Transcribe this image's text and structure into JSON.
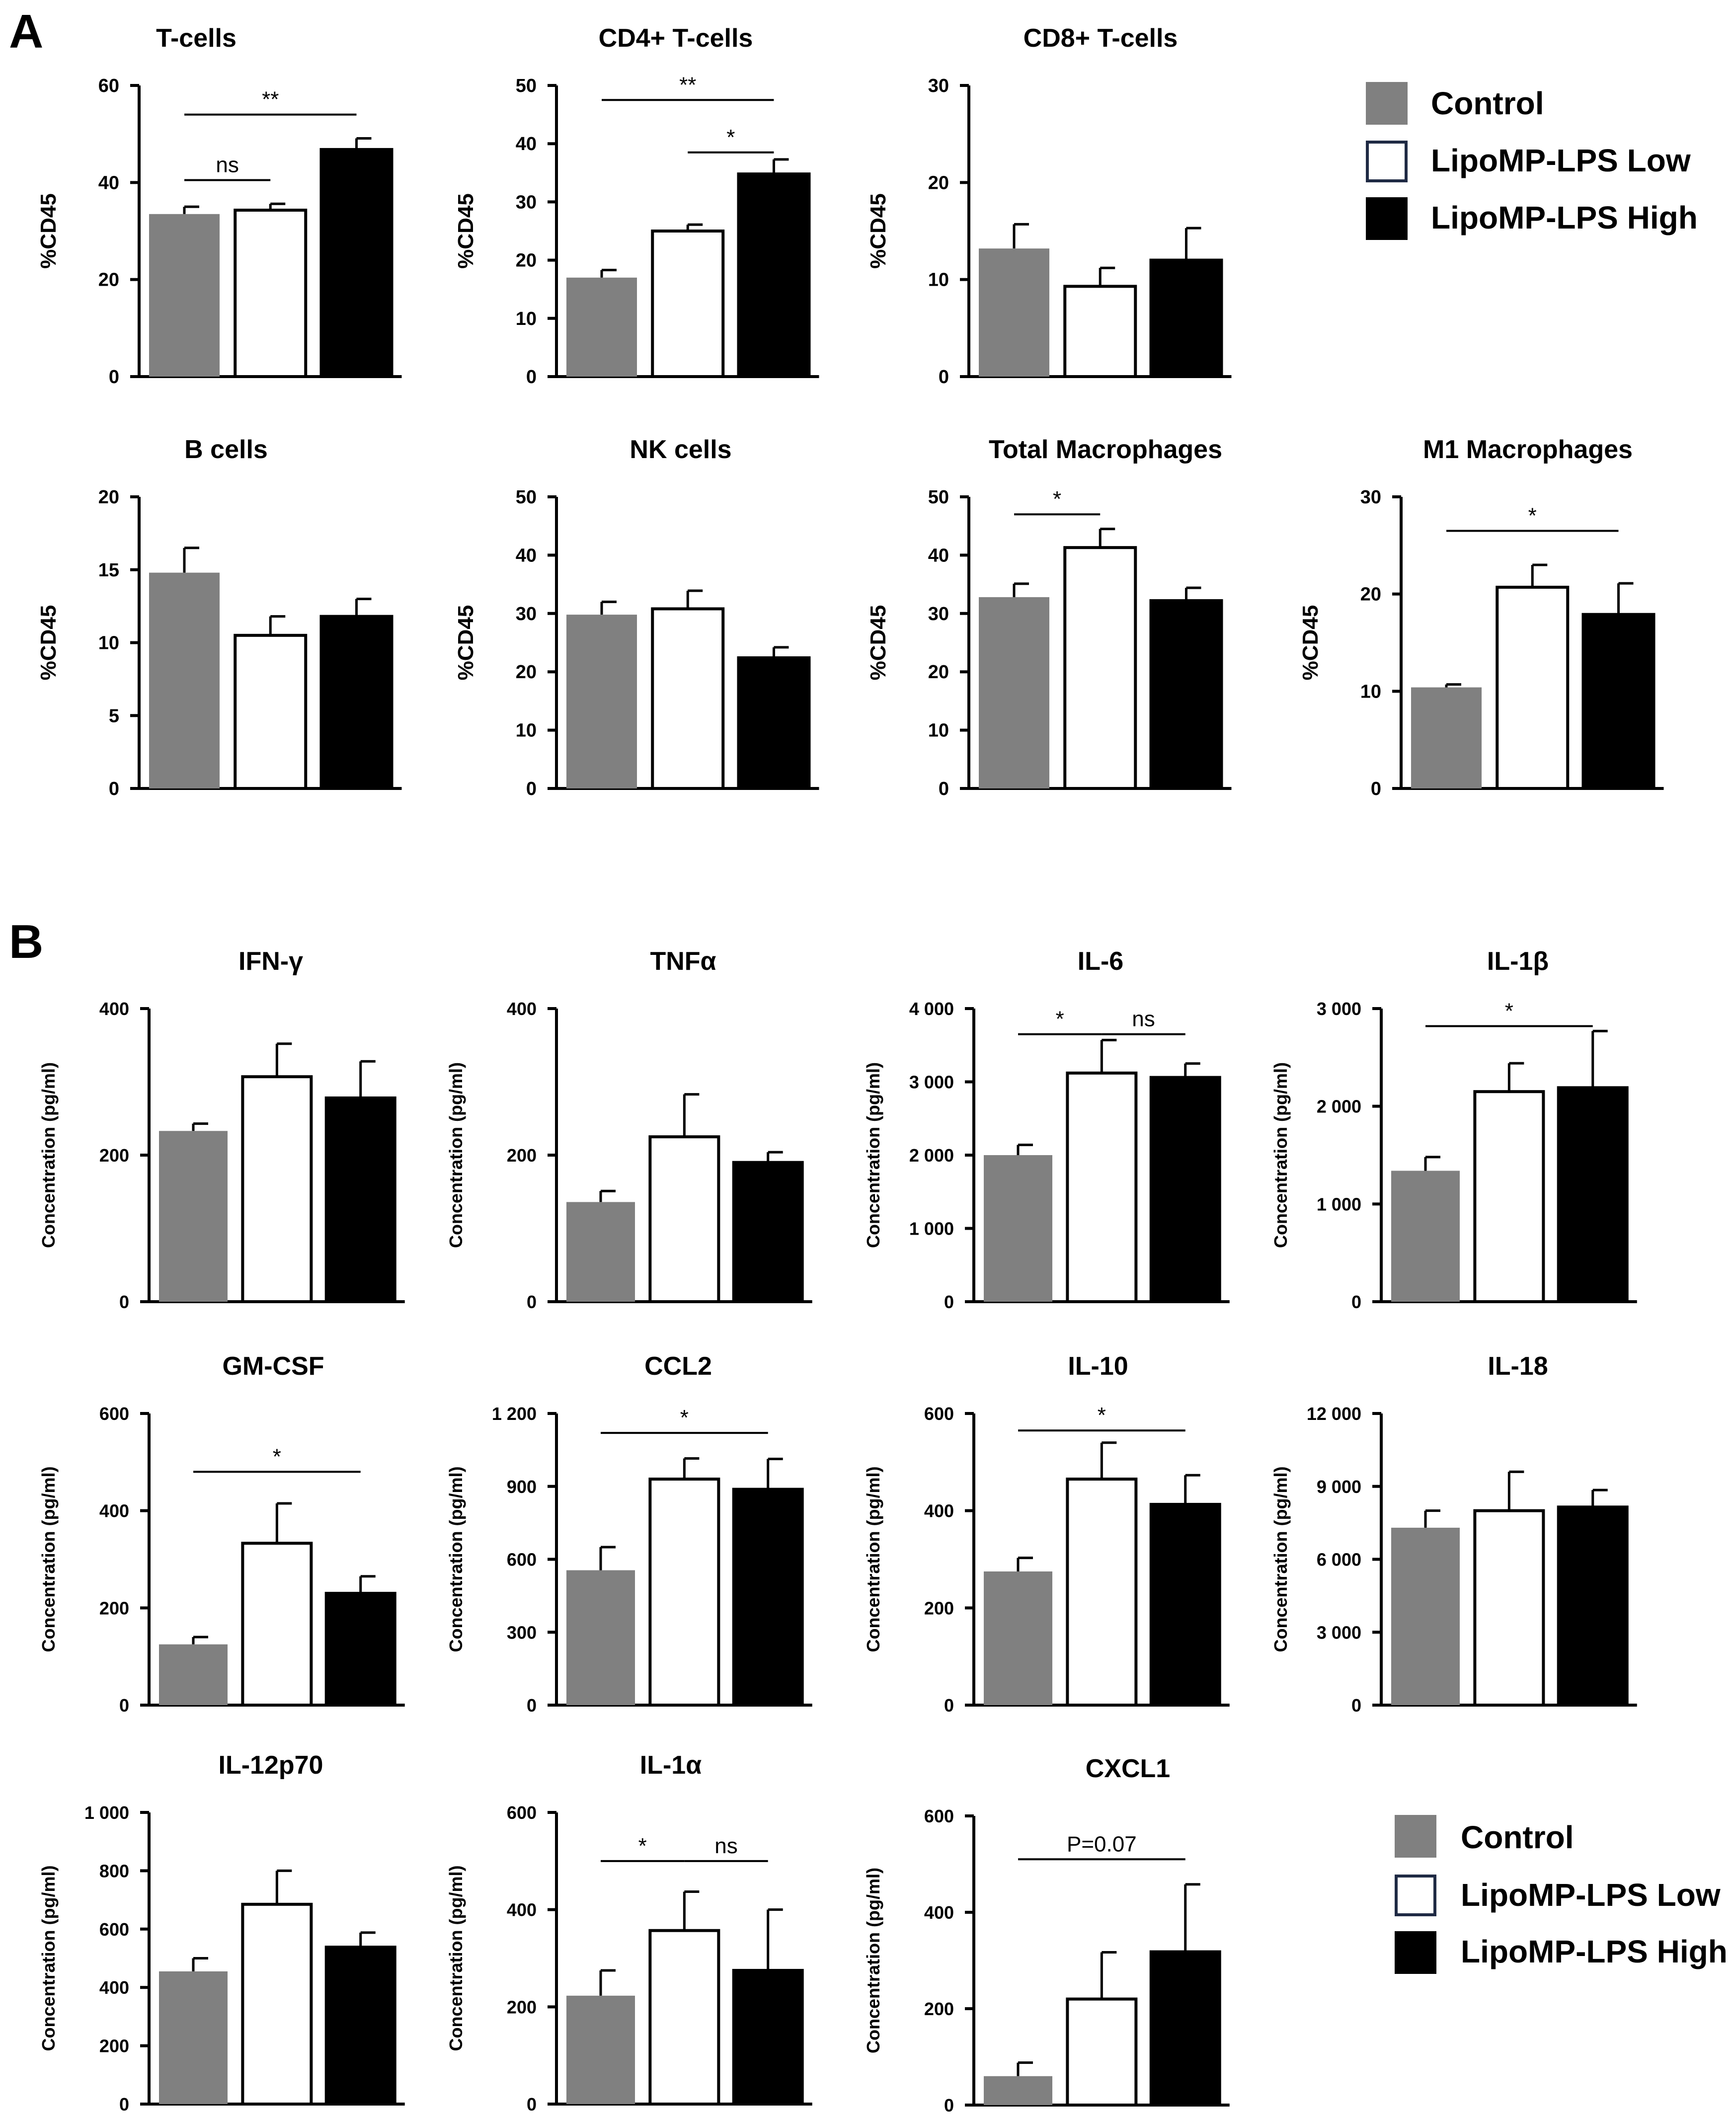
{
  "panels": {
    "a": "A",
    "b": "B"
  },
  "colors": {
    "control": "#808080",
    "low": "#ffffff",
    "high": "#000000",
    "axis": "#000000"
  },
  "groups": [
    {
      "key": "control",
      "label": "Control"
    },
    {
      "key": "low",
      "label": "LipoMP-LPS Low"
    },
    {
      "key": "high",
      "label": "LipoMP-LPS High"
    }
  ],
  "chart_data": [
    {
      "type": "bar",
      "panel": "A",
      "title": "T-cells",
      "ylabel": "%CD45",
      "ylim": [
        0,
        60
      ],
      "ticks": [
        0,
        20,
        40,
        60
      ],
      "tick_labels": [
        "0",
        "20",
        "40",
        "60"
      ],
      "categories": [
        "Control",
        "LipoMP-LPS Low",
        "LipoMP-LPS High"
      ],
      "values": [
        33.5,
        34.3,
        46.8
      ],
      "errors": [
        1.5,
        1.3,
        2.3
      ],
      "significance": [
        {
          "from": 0,
          "to": 2,
          "label": "**",
          "y": 54
        },
        {
          "from": 0,
          "to": 1,
          "label": "ns",
          "y": 40.5
        }
      ]
    },
    {
      "type": "bar",
      "panel": "A",
      "title": "CD4+ T-cells",
      "ylabel": "%CD45",
      "ylim": [
        0,
        50
      ],
      "ticks": [
        0,
        10,
        20,
        30,
        40,
        50
      ],
      "tick_labels": [
        "0",
        "10",
        "20",
        "30",
        "40",
        "50"
      ],
      "categories": [
        "Control",
        "LipoMP-LPS Low",
        "LipoMP-LPS High"
      ],
      "values": [
        17,
        25,
        34.8
      ],
      "errors": [
        1.3,
        1.1,
        2.5
      ],
      "significance": [
        {
          "from": 0,
          "to": 2,
          "label": "**",
          "y": 47.5
        },
        {
          "from": 1,
          "to": 2,
          "label": "*",
          "y": 38.5
        }
      ]
    },
    {
      "type": "bar",
      "panel": "A",
      "title": "CD8+ T-cells",
      "ylabel": "%CD45",
      "ylim": [
        0,
        30
      ],
      "ticks": [
        0,
        10,
        20,
        30
      ],
      "tick_labels": [
        "0",
        "10",
        "20",
        "30"
      ],
      "categories": [
        "Control",
        "LipoMP-LPS Low",
        "LipoMP-LPS High"
      ],
      "values": [
        13.2,
        9.3,
        12
      ],
      "errors": [
        2.5,
        1.9,
        3.3
      ],
      "significance": []
    },
    {
      "type": "bar",
      "panel": "A",
      "title": "B cells",
      "ylabel": "%CD45",
      "ylim": [
        0,
        20
      ],
      "ticks": [
        0,
        5,
        10,
        15,
        20
      ],
      "tick_labels": [
        "0",
        "5",
        "10",
        "15",
        "20"
      ],
      "categories": [
        "Control",
        "LipoMP-LPS Low",
        "LipoMP-LPS High"
      ],
      "values": [
        14.8,
        10.5,
        11.8
      ],
      "errors": [
        1.7,
        1.3,
        1.2
      ],
      "significance": []
    },
    {
      "type": "bar",
      "panel": "A",
      "title": "NK cells",
      "ylabel": "%CD45",
      "ylim": [
        0,
        50
      ],
      "ticks": [
        0,
        10,
        20,
        30,
        40,
        50
      ],
      "tick_labels": [
        "0",
        "10",
        "20",
        "30",
        "40",
        "50"
      ],
      "categories": [
        "Control",
        "LipoMP-LPS Low",
        "LipoMP-LPS High"
      ],
      "values": [
        29.8,
        30.8,
        22.4
      ],
      "errors": [
        2.2,
        3.1,
        1.8
      ],
      "significance": []
    },
    {
      "type": "bar",
      "panel": "A",
      "title": "Total Macrophages",
      "ylabel": "%CD45",
      "ylim": [
        0,
        50
      ],
      "ticks": [
        0,
        10,
        20,
        30,
        40,
        50
      ],
      "tick_labels": [
        "0",
        "10",
        "20",
        "30",
        "40",
        "50"
      ],
      "categories": [
        "Control",
        "LipoMP-LPS Low",
        "LipoMP-LPS High"
      ],
      "values": [
        32.8,
        41.3,
        32.2
      ],
      "errors": [
        2.3,
        3.2,
        2.2
      ],
      "significance": [
        {
          "from": 0,
          "to": 1,
          "label": "*",
          "y": 47
        }
      ]
    },
    {
      "type": "bar",
      "panel": "A",
      "title": "M1 Macrophages",
      "ylabel": "%CD45",
      "ylim": [
        0,
        30
      ],
      "ticks": [
        0,
        10,
        20,
        30
      ],
      "tick_labels": [
        "0",
        "10",
        "20",
        "30"
      ],
      "categories": [
        "Control",
        "LipoMP-LPS Low",
        "LipoMP-LPS High"
      ],
      "values": [
        10.4,
        20.7,
        17.9
      ],
      "errors": [
        0.3,
        2.3,
        3.2
      ],
      "significance": [
        {
          "from": 0,
          "to": 2,
          "label": "*",
          "y": 26.5
        }
      ]
    },
    {
      "type": "bar",
      "panel": "B",
      "title": "IFN-γ",
      "ylabel": "Concentration (pg/ml)",
      "ylim": [
        0,
        400
      ],
      "ticks": [
        0,
        200,
        400
      ],
      "tick_labels": [
        "0",
        "200",
        "400"
      ],
      "categories": [
        "Control",
        "LipoMP-LPS Low",
        "LipoMP-LPS High"
      ],
      "values": [
        233,
        307,
        278
      ],
      "errors": [
        10,
        45,
        50
      ],
      "significance": []
    },
    {
      "type": "bar",
      "panel": "B",
      "title": "TNFα",
      "ylabel": "Concentration (pg/ml)",
      "ylim": [
        0,
        400
      ],
      "ticks": [
        0,
        200,
        400
      ],
      "tick_labels": [
        "0",
        "200",
        "400"
      ],
      "categories": [
        "Control",
        "LipoMP-LPS Low",
        "LipoMP-LPS High"
      ],
      "values": [
        136,
        225,
        190
      ],
      "errors": [
        15,
        58,
        14
      ],
      "significance": []
    },
    {
      "type": "bar",
      "panel": "B",
      "title": "IL-6",
      "ylabel": "Concentration (pg/ml)",
      "ylim": [
        0,
        4000
      ],
      "ticks": [
        0,
        1000,
        2000,
        3000,
        4000
      ],
      "tick_labels": [
        "0",
        "1 000",
        "2 000",
        "3 000",
        "4 000"
      ],
      "categories": [
        "Control",
        "LipoMP-LPS Low",
        "LipoMP-LPS High"
      ],
      "values": [
        2000,
        3120,
        3060
      ],
      "errors": [
        140,
        450,
        190
      ],
      "significance": [
        {
          "from": 0,
          "to": 1,
          "label": "*",
          "y": 3650
        },
        {
          "from": 1,
          "to": 2,
          "label": "ns",
          "y": 3650
        }
      ]
    },
    {
      "type": "bar",
      "panel": "B",
      "title": "IL-1β",
      "ylabel": "Concentration (pg/ml)",
      "ylim": [
        0,
        3000
      ],
      "ticks": [
        0,
        1000,
        2000,
        3000
      ],
      "tick_labels": [
        "0",
        "1 000",
        "2 000",
        "3 000"
      ],
      "categories": [
        "Control",
        "LipoMP-LPS Low",
        "LipoMP-LPS High"
      ],
      "values": [
        1340,
        2150,
        2190
      ],
      "errors": [
        140,
        290,
        580
      ],
      "significance": [
        {
          "from": 0,
          "to": 2,
          "label": "*",
          "y": 2820
        }
      ]
    },
    {
      "type": "bar",
      "panel": "B",
      "title": "GM-CSF",
      "ylabel": "Concentration (pg/ml)",
      "ylim": [
        0,
        600
      ],
      "ticks": [
        0,
        200,
        400,
        600
      ],
      "tick_labels": [
        "0",
        "200",
        "400",
        "600"
      ],
      "categories": [
        "Control",
        "LipoMP-LPS Low",
        "LipoMP-LPS High"
      ],
      "values": [
        125,
        333,
        230
      ],
      "errors": [
        15,
        82,
        35
      ],
      "significance": [
        {
          "from": 0,
          "to": 2,
          "label": "*",
          "y": 480
        }
      ]
    },
    {
      "type": "bar",
      "panel": "B",
      "title": "CCL2",
      "ylabel": "Concentration (pg/ml)",
      "ylim": [
        0,
        1200
      ],
      "ticks": [
        0,
        300,
        600,
        900,
        1200
      ],
      "tick_labels": [
        "0",
        "300",
        "600",
        "900",
        "1 200"
      ],
      "categories": [
        "Control",
        "LipoMP-LPS Low",
        "LipoMP-LPS High"
      ],
      "values": [
        555,
        930,
        888
      ],
      "errors": [
        95,
        85,
        125
      ],
      "significance": [
        {
          "from": 0,
          "to": 2,
          "label": "*",
          "y": 1120
        }
      ]
    },
    {
      "type": "bar",
      "panel": "B",
      "title": "IL-10",
      "ylabel": "Concentration (pg/ml)",
      "ylim": [
        0,
        600
      ],
      "ticks": [
        0,
        200,
        400,
        600
      ],
      "tick_labels": [
        "0",
        "200",
        "400",
        "600"
      ],
      "categories": [
        "Control",
        "LipoMP-LPS Low",
        "LipoMP-LPS High"
      ],
      "values": [
        275,
        465,
        413
      ],
      "errors": [
        28,
        75,
        60
      ],
      "significance": [
        {
          "from": 0,
          "to": 2,
          "label": "*",
          "y": 565
        }
      ]
    },
    {
      "type": "bar",
      "panel": "B",
      "title": "IL-18",
      "ylabel": "Concentration (pg/ml)",
      "ylim": [
        0,
        12000
      ],
      "ticks": [
        0,
        3000,
        6000,
        9000,
        12000
      ],
      "tick_labels": [
        "0",
        "3 000",
        "6 000",
        "9 000",
        "12 000"
      ],
      "categories": [
        "Control",
        "LipoMP-LPS Low",
        "LipoMP-LPS High"
      ],
      "values": [
        7300,
        8000,
        8150
      ],
      "errors": [
        700,
        1600,
        700
      ],
      "significance": []
    },
    {
      "type": "bar",
      "panel": "B",
      "title": "IL-12p70",
      "ylabel": "Concentration (pg/ml)",
      "ylim": [
        0,
        1000
      ],
      "ticks": [
        0,
        200,
        400,
        600,
        800,
        1000
      ],
      "tick_labels": [
        "0",
        "200",
        "400",
        "600",
        "800",
        "1 000"
      ],
      "categories": [
        "Control",
        "LipoMP-LPS Low",
        "LipoMP-LPS High"
      ],
      "values": [
        455,
        685,
        538
      ],
      "errors": [
        45,
        115,
        50
      ],
      "significance": []
    },
    {
      "type": "bar",
      "panel": "B",
      "title": "IL-1α",
      "ylabel": "Concentration (pg/ml)",
      "ylim": [
        0,
        600
      ],
      "ticks": [
        0,
        200,
        400,
        600
      ],
      "tick_labels": [
        "0",
        "200",
        "400",
        "600"
      ],
      "categories": [
        "Control",
        "LipoMP-LPS Low",
        "LipoMP-LPS High"
      ],
      "values": [
        223,
        357,
        275
      ],
      "errors": [
        52,
        80,
        125
      ],
      "significance": [
        {
          "from": 0,
          "to": 1,
          "label": "*",
          "y": 500
        },
        {
          "from": 1,
          "to": 2,
          "label": "ns",
          "y": 500
        }
      ]
    },
    {
      "type": "bar",
      "panel": "B",
      "title": "CXCL1",
      "ylabel": "Concentration (pg/ml)",
      "ylim": [
        0,
        600
      ],
      "ticks": [
        0,
        200,
        400,
        600
      ],
      "tick_labels": [
        "0",
        "200",
        "400",
        "600"
      ],
      "categories": [
        "Control",
        "LipoMP-LPS Low",
        "LipoMP-LPS High"
      ],
      "values": [
        60,
        220,
        318
      ],
      "errors": [
        28,
        97,
        140
      ],
      "significance": [
        {
          "from": 0,
          "to": 2,
          "label": "P=0.07",
          "y": 510
        }
      ]
    }
  ]
}
